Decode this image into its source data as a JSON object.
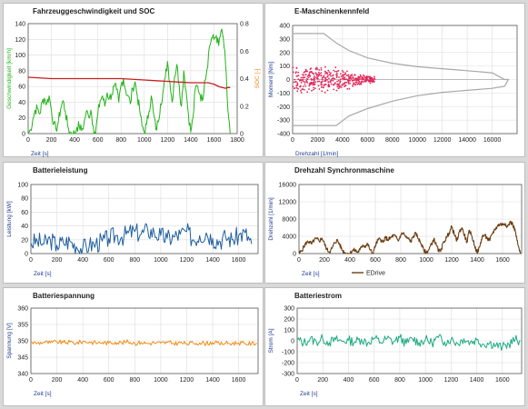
{
  "colors": {
    "speed": "#22b318",
    "soc": "#c81e1e",
    "soc_axis": "#ff7f0e",
    "axis_blue": "#1f3a93",
    "scatter": "#e0285a",
    "envelope": "#a8a8a8",
    "power": "#1f5fa0",
    "drehzahl": "#6b3f12",
    "voltage": "#f28c14",
    "current": "#1aab80"
  },
  "chart_data": [
    {
      "id": "speed_soc",
      "type": "line",
      "title": "Fahrzeuggeschwindigkeit und SOC",
      "xlabel": "Zeit [s]",
      "ylabel": "Geschwindigkeit [km/h]",
      "y2label": "SOC [-]",
      "xlim": [
        0,
        1800
      ],
      "ylim": [
        0,
        140
      ],
      "y2lim": [
        0,
        0.8
      ],
      "xticks": [
        0,
        200,
        400,
        600,
        800,
        1000,
        1200,
        1400,
        1600,
        1800
      ],
      "yticks": [
        0,
        20,
        40,
        60,
        80,
        100,
        120,
        140
      ],
      "y2ticks": [
        0,
        0.2,
        0.4,
        0.6,
        0.8
      ],
      "y2tick_labels": [
        "0",
        "0.2",
        "0.4",
        "0.6",
        "0.8"
      ],
      "series": [
        {
          "axis": "y",
          "color": "speed",
          "x": [
            0,
            20,
            40,
            60,
            80,
            100,
            120,
            140,
            160,
            180,
            200,
            220,
            240,
            260,
            280,
            300,
            320,
            340,
            360,
            380,
            400,
            420,
            440,
            460,
            480,
            500,
            520,
            540,
            560,
            580,
            600,
            620,
            640,
            660,
            680,
            700,
            720,
            740,
            760,
            780,
            800,
            820,
            840,
            860,
            880,
            900,
            920,
            940,
            960,
            980,
            1000,
            1020,
            1040,
            1060,
            1080,
            1100,
            1120,
            1140,
            1160,
            1180,
            1200,
            1220,
            1240,
            1260,
            1280,
            1300,
            1320,
            1340,
            1360,
            1380,
            1400,
            1420,
            1440,
            1460,
            1480,
            1500,
            1520,
            1540,
            1560,
            1580,
            1600,
            1620,
            1640,
            1660,
            1680,
            1700,
            1720,
            1740
          ],
          "y": [
            0,
            5,
            18,
            30,
            32,
            25,
            40,
            45,
            38,
            48,
            30,
            12,
            5,
            15,
            32,
            42,
            28,
            10,
            2,
            0,
            0,
            8,
            10,
            4,
            12,
            28,
            22,
            30,
            10,
            0,
            25,
            42,
            48,
            35,
            52,
            45,
            50,
            60,
            56,
            40,
            62,
            70,
            55,
            48,
            38,
            58,
            66,
            48,
            30,
            10,
            2,
            12,
            28,
            48,
            25,
            5,
            15,
            38,
            52,
            70,
            92,
            66,
            40,
            72,
            88,
            62,
            35,
            80,
            55,
            25,
            2,
            20,
            58,
            60,
            50,
            42,
            68,
            82,
            110,
            122,
            120,
            125,
            112,
            130,
            122,
            88,
            30,
            0
          ]
        },
        {
          "axis": "y2",
          "color": "soc",
          "x": [
            0,
            200,
            400,
            600,
            800,
            1000,
            1100,
            1200,
            1300,
            1400,
            1450,
            1500,
            1550,
            1600,
            1650,
            1700,
            1720,
            1740
          ],
          "y": [
            0.41,
            0.4,
            0.4,
            0.4,
            0.4,
            0.39,
            0.385,
            0.38,
            0.375,
            0.37,
            0.37,
            0.37,
            0.37,
            0.36,
            0.34,
            0.33,
            0.335,
            0.335
          ]
        }
      ]
    },
    {
      "id": "kennfeld",
      "type": "scatter",
      "title": "E-Maschinenkennfeld",
      "xlabel": "Drehzahl [1/min]",
      "ylabel": "Moment [Nm]",
      "xlim": [
        0,
        18000
      ],
      "ylim": [
        -400,
        400
      ],
      "xticks": [
        0,
        2000,
        4000,
        6000,
        8000,
        10000,
        12000,
        14000,
        16000
      ],
      "yticks": [
        -400,
        -300,
        -200,
        -100,
        0,
        100,
        200,
        300,
        400
      ],
      "envelope_x": [
        0,
        2500,
        3500,
        4500,
        6000,
        8000,
        10000,
        12000,
        14000,
        16000,
        17000,
        17300,
        17000,
        16000,
        14000,
        12000,
        10000,
        8000,
        6000,
        4500,
        3500,
        2500,
        0
      ],
      "envelope_y": [
        340,
        340,
        270,
        215,
        160,
        120,
        95,
        80,
        65,
        50,
        0,
        0,
        -50,
        -65,
        -80,
        -95,
        -120,
        -160,
        -215,
        -270,
        -340,
        -340,
        -340
      ]
    },
    {
      "id": "leistung",
      "type": "line",
      "title": "Batterieleistung",
      "xlabel": "Zeit [s]",
      "ylabel": "Leistung [kW]",
      "xlim": [
        0,
        1750
      ],
      "ylim": [
        0,
        100
      ],
      "xticks": [
        0,
        200,
        400,
        600,
        800,
        1000,
        1200,
        1400,
        1600
      ],
      "yticks": [
        0,
        20,
        40,
        60,
        80,
        100
      ],
      "series": [
        {
          "color": "power",
          "x": [
            0,
            50,
            100,
            150,
            200,
            250,
            300,
            350,
            400,
            450,
            500,
            550,
            600,
            650,
            700,
            750,
            800,
            850,
            900,
            950,
            1000,
            1050,
            1100,
            1150,
            1200,
            1250,
            1300,
            1350,
            1400,
            1450,
            1500,
            1550,
            1600,
            1650,
            1700
          ],
          "y": [
            15,
            18,
            14,
            20,
            12,
            16,
            18,
            10,
            8,
            12,
            14,
            18,
            22,
            26,
            24,
            30,
            32,
            28,
            34,
            30,
            26,
            22,
            24,
            28,
            32,
            20,
            26,
            30,
            22,
            18,
            24,
            20,
            26,
            30,
            14
          ]
        }
      ]
    },
    {
      "id": "drehzahl",
      "type": "line",
      "title": "Drehzahl Synchronmaschine",
      "xlabel": "Zeit [s]",
      "ylabel": "Drehzahl [1/min]",
      "xlim": [
        0,
        1750
      ],
      "ylim": [
        0,
        16000
      ],
      "xticks": [
        0,
        200,
        400,
        600,
        800,
        1000,
        1200,
        1400,
        1600
      ],
      "yticks": [
        0,
        4000,
        8000,
        12000,
        16000
      ],
      "legend": "EDrive",
      "legend_loc": "lower-left",
      "series": [
        {
          "name": "EDrive",
          "color": "drehzahl",
          "x": [
            0,
            20,
            40,
            60,
            80,
            100,
            120,
            140,
            160,
            180,
            200,
            220,
            240,
            260,
            280,
            300,
            320,
            340,
            360,
            380,
            400,
            420,
            440,
            460,
            480,
            500,
            520,
            540,
            560,
            580,
            600,
            620,
            640,
            660,
            680,
            700,
            720,
            740,
            760,
            780,
            800,
            820,
            840,
            860,
            880,
            900,
            920,
            940,
            960,
            980,
            1000,
            1020,
            1040,
            1060,
            1080,
            1100,
            1120,
            1140,
            1160,
            1180,
            1200,
            1220,
            1240,
            1260,
            1280,
            1300,
            1320,
            1340,
            1360,
            1380,
            1400,
            1420,
            1440,
            1460,
            1480,
            1500,
            1520,
            1540,
            1560,
            1580,
            1600,
            1620,
            1640,
            1660,
            1680,
            1700,
            1720,
            1740
          ],
          "y": [
            0,
            600,
            1700,
            2600,
            2800,
            2200,
            3200,
            3400,
            2900,
            3600,
            2300,
            900,
            400,
            1200,
            2500,
            3100,
            2100,
            800,
            200,
            0,
            0,
            700,
            800,
            300,
            900,
            2000,
            1700,
            2200,
            800,
            0,
            1800,
            3100,
            3400,
            2600,
            3700,
            3200,
            3600,
            4200,
            3900,
            2900,
            4300,
            4800,
            3800,
            3400,
            2800,
            4100,
            4600,
            3400,
            2300,
            800,
            200,
            900,
            2100,
            3400,
            1900,
            400,
            1200,
            2800,
            3700,
            4800,
            6200,
            4600,
            2900,
            5000,
            6000,
            4300,
            2600,
            5400,
            3900,
            1900,
            200,
            1500,
            4000,
            4200,
            3500,
            3000,
            4700,
            5600,
            6400,
            6800,
            6700,
            7000,
            6300,
            7300,
            6800,
            5200,
            2100,
            0
          ]
        }
      ]
    },
    {
      "id": "spannung",
      "type": "line",
      "title": "Batteriespannung",
      "xlabel": "Zeit [s]",
      "ylabel": "Spannung [V]",
      "xlim": [
        0,
        1750
      ],
      "ylim": [
        340,
        360
      ],
      "xticks": [
        0,
        200,
        400,
        600,
        800,
        1000,
        1200,
        1400,
        1600
      ],
      "yticks": [
        340,
        345,
        350,
        355,
        360
      ],
      "series": [
        {
          "color": "voltage",
          "x": [
            0,
            50,
            100,
            150,
            200,
            250,
            300,
            350,
            400,
            450,
            500,
            550,
            600,
            650,
            700,
            750,
            800,
            850,
            900,
            950,
            1000,
            1050,
            1100,
            1150,
            1200,
            1250,
            1300,
            1350,
            1400,
            1450,
            1500,
            1550,
            1600,
            1650,
            1700,
            1740
          ],
          "y": [
            349.5,
            349.3,
            349.6,
            349.4,
            349.7,
            349.5,
            349.6,
            349.3,
            349.8,
            349.6,
            349.4,
            349.5,
            349.3,
            349.6,
            349.4,
            349.7,
            349.3,
            349.5,
            349.2,
            349.4,
            349.3,
            349.5,
            349.2,
            349.4,
            349.1,
            349.3,
            349.4,
            349.2,
            349.5,
            349.1,
            349.3,
            349.2,
            349.4,
            349.1,
            349.2,
            349.3
          ]
        }
      ]
    },
    {
      "id": "strom",
      "type": "line",
      "title": "Batteriestrom",
      "xlabel": "Zeit [s]",
      "ylabel": "Strom [A]",
      "xlim": [
        0,
        1750
      ],
      "ylim": [
        -300,
        300
      ],
      "xticks": [
        0,
        200,
        400,
        600,
        800,
        1000,
        1200,
        1400,
        1600
      ],
      "yticks": [
        -300,
        -200,
        -100,
        0,
        100,
        200,
        300
      ],
      "series": [
        {
          "color": "current",
          "x": [
            0,
            50,
            100,
            150,
            200,
            250,
            300,
            350,
            400,
            450,
            500,
            550,
            600,
            650,
            700,
            750,
            800,
            850,
            900,
            950,
            1000,
            1050,
            1100,
            1150,
            1200,
            1250,
            1300,
            1350,
            1400,
            1450,
            1500,
            1550,
            1600,
            1650,
            1700,
            1740
          ],
          "y": [
            10,
            -20,
            15,
            -10,
            20,
            -15,
            10,
            -5,
            5,
            -10,
            15,
            -20,
            25,
            -15,
            20,
            -10,
            30,
            -25,
            20,
            -15,
            10,
            -20,
            30,
            -10,
            15,
            -25,
            20,
            -15,
            10,
            -30,
            -20,
            -40,
            -60,
            -30,
            10,
            0
          ]
        }
      ]
    }
  ]
}
